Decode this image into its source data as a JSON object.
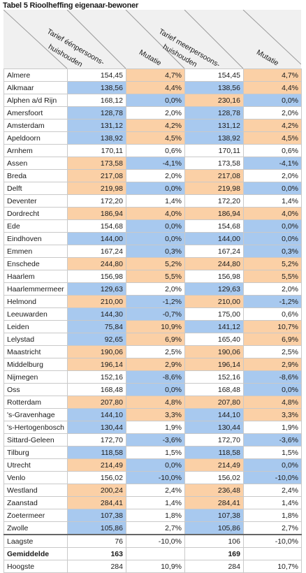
{
  "title": "Tabel 5  Rioolheffing eigenaar-bewoner",
  "headers": [
    {
      "l1": "Tarief éénpersoons-",
      "l2": "huishouden"
    },
    {
      "l1": "Mutatie",
      "l2": ""
    },
    {
      "l1": "Tarief meerpersoons-",
      "l2": "huishouden"
    },
    {
      "l1": "Mutatie",
      "l2": ""
    }
  ],
  "colors": {
    "orange": "#fbd0a6",
    "blue": "#a8c9ef",
    "grey": "#f0f0f0"
  },
  "rows": [
    {
      "name": "Almere",
      "v1": "154,45",
      "m1": "4,7%",
      "v2": "154,45",
      "m2": "4,7%",
      "c": [
        "w",
        "o",
        "w",
        "o"
      ]
    },
    {
      "name": "Alkmaar",
      "v1": "138,56",
      "m1": "4,4%",
      "v2": "138,56",
      "m2": "4,4%",
      "c": [
        "b",
        "o",
        "b",
        "o"
      ]
    },
    {
      "name": "Alphen a/d Rijn",
      "v1": "168,12",
      "m1": "0,0%",
      "v2": "230,16",
      "m2": "0,0%",
      "c": [
        "w",
        "b",
        "o",
        "b"
      ]
    },
    {
      "name": "Amersfoort",
      "v1": "128,78",
      "m1": "2,0%",
      "v2": "128,78",
      "m2": "2,0%",
      "c": [
        "b",
        "w",
        "b",
        "w"
      ]
    },
    {
      "name": "Amsterdam",
      "v1": "131,12",
      "m1": "4,2%",
      "v2": "131,12",
      "m2": "4,2%",
      "c": [
        "b",
        "o",
        "b",
        "o"
      ]
    },
    {
      "name": "Apeldoorn",
      "v1": "138,92",
      "m1": "4,5%",
      "v2": "138,92",
      "m2": "4,5%",
      "c": [
        "b",
        "o",
        "b",
        "o"
      ]
    },
    {
      "name": "Arnhem",
      "v1": "170,11",
      "m1": "0,6%",
      "v2": "170,11",
      "m2": "0,6%",
      "c": [
        "w",
        "w",
        "w",
        "w"
      ]
    },
    {
      "name": "Assen",
      "v1": "173,58",
      "m1": "-4,1%",
      "v2": "173,58",
      "m2": "-4,1%",
      "c": [
        "o",
        "b",
        "w",
        "b"
      ]
    },
    {
      "name": "Breda",
      "v1": "217,08",
      "m1": "2,0%",
      "v2": "217,08",
      "m2": "2,0%",
      "c": [
        "o",
        "w",
        "o",
        "w"
      ]
    },
    {
      "name": "Delft",
      "v1": "219,98",
      "m1": "0,0%",
      "v2": "219,98",
      "m2": "0,0%",
      "c": [
        "o",
        "b",
        "o",
        "b"
      ]
    },
    {
      "name": "Deventer",
      "v1": "172,20",
      "m1": "1,4%",
      "v2": "172,20",
      "m2": "1,4%",
      "c": [
        "w",
        "w",
        "w",
        "w"
      ]
    },
    {
      "name": "Dordrecht",
      "v1": "186,94",
      "m1": "4,0%",
      "v2": "186,94",
      "m2": "4,0%",
      "c": [
        "o",
        "o",
        "o",
        "o"
      ]
    },
    {
      "name": "Ede",
      "v1": "154,68",
      "m1": "0,0%",
      "v2": "154,68",
      "m2": "0,0%",
      "c": [
        "w",
        "b",
        "w",
        "b"
      ]
    },
    {
      "name": "Eindhoven",
      "v1": "144,00",
      "m1": "0,0%",
      "v2": "144,00",
      "m2": "0,0%",
      "c": [
        "b",
        "b",
        "b",
        "b"
      ]
    },
    {
      "name": "Emmen",
      "v1": "167,24",
      "m1": "0,3%",
      "v2": "167,24",
      "m2": "0,3%",
      "c": [
        "w",
        "b",
        "w",
        "b"
      ]
    },
    {
      "name": "Enschede",
      "v1": "244,80",
      "m1": "5,2%",
      "v2": "244,80",
      "m2": "5,2%",
      "c": [
        "o",
        "o",
        "o",
        "o"
      ]
    },
    {
      "name": "Haarlem",
      "v1": "156,98",
      "m1": "5,5%",
      "v2": "156,98",
      "m2": "5,5%",
      "c": [
        "w",
        "o",
        "w",
        "o"
      ]
    },
    {
      "name": "Haarlemmermeer",
      "v1": "129,63",
      "m1": "2,0%",
      "v2": "129,63",
      "m2": "2,0%",
      "c": [
        "b",
        "w",
        "b",
        "w"
      ]
    },
    {
      "name": "Helmond",
      "v1": "210,00",
      "m1": "-1,2%",
      "v2": "210,00",
      "m2": "-1,2%",
      "c": [
        "o",
        "b",
        "o",
        "b"
      ]
    },
    {
      "name": "Leeuwarden",
      "v1": "144,30",
      "m1": "-0,7%",
      "v2": "175,00",
      "m2": "0,6%",
      "c": [
        "b",
        "b",
        "w",
        "w"
      ]
    },
    {
      "name": "Leiden",
      "v1": "75,84",
      "m1": "10,9%",
      "v2": "141,12",
      "m2": "10,7%",
      "c": [
        "b",
        "o",
        "b",
        "o"
      ]
    },
    {
      "name": "Lelystad",
      "v1": "92,65",
      "m1": "6,9%",
      "v2": "165,40",
      "m2": "6,9%",
      "c": [
        "b",
        "o",
        "w",
        "o"
      ]
    },
    {
      "name": "Maastricht",
      "v1": "190,06",
      "m1": "2,5%",
      "v2": "190,06",
      "m2": "2,5%",
      "c": [
        "o",
        "w",
        "o",
        "w"
      ]
    },
    {
      "name": "Middelburg",
      "v1": "196,14",
      "m1": "2,9%",
      "v2": "196,14",
      "m2": "2,9%",
      "c": [
        "o",
        "o",
        "o",
        "o"
      ]
    },
    {
      "name": "Nijmegen",
      "v1": "152,16",
      "m1": "-8,6%",
      "v2": "152,16",
      "m2": "-8,6%",
      "c": [
        "w",
        "b",
        "w",
        "b"
      ]
    },
    {
      "name": "Oss",
      "v1": "168,48",
      "m1": "0,0%",
      "v2": "168,48",
      "m2": "0,0%",
      "c": [
        "w",
        "b",
        "w",
        "b"
      ]
    },
    {
      "name": "Rotterdam",
      "v1": "207,80",
      "m1": "4,8%",
      "v2": "207,80",
      "m2": "4,8%",
      "c": [
        "o",
        "o",
        "o",
        "o"
      ]
    },
    {
      "name": "'s-Gravenhage",
      "v1": "144,10",
      "m1": "3,3%",
      "v2": "144,10",
      "m2": "3,3%",
      "c": [
        "b",
        "o",
        "b",
        "o"
      ]
    },
    {
      "name": "'s-Hertogenbosch",
      "v1": "130,44",
      "m1": "1,9%",
      "v2": "130,44",
      "m2": "1,9%",
      "c": [
        "b",
        "w",
        "b",
        "w"
      ]
    },
    {
      "name": "Sittard-Geleen",
      "v1": "172,70",
      "m1": "-3,6%",
      "v2": "172,70",
      "m2": "-3,6%",
      "c": [
        "w",
        "b",
        "w",
        "b"
      ]
    },
    {
      "name": "Tilburg",
      "v1": "118,58",
      "m1": "1,5%",
      "v2": "118,58",
      "m2": "1,5%",
      "c": [
        "b",
        "w",
        "b",
        "w"
      ]
    },
    {
      "name": "Utrecht",
      "v1": "214,49",
      "m1": "0,0%",
      "v2": "214,49",
      "m2": "0,0%",
      "c": [
        "o",
        "b",
        "o",
        "b"
      ]
    },
    {
      "name": "Venlo",
      "v1": "156,02",
      "m1": "-10,0%",
      "v2": "156,02",
      "m2": "-10,0%",
      "c": [
        "w",
        "b",
        "w",
        "b"
      ]
    },
    {
      "name": "Westland",
      "v1": "200,24",
      "m1": "2,4%",
      "v2": "236,48",
      "m2": "2,4%",
      "c": [
        "o",
        "w",
        "o",
        "w"
      ]
    },
    {
      "name": "Zaanstad",
      "v1": "284,41",
      "m1": "1,4%",
      "v2": "284,41",
      "m2": "1,4%",
      "c": [
        "o",
        "w",
        "o",
        "w"
      ]
    },
    {
      "name": "Zoetermeer",
      "v1": "107,38",
      "m1": "1,8%",
      "v2": "107,38",
      "m2": "1,8%",
      "c": [
        "b",
        "w",
        "b",
        "w"
      ]
    },
    {
      "name": "Zwolle",
      "v1": "105,86",
      "m1": "2,7%",
      "v2": "105,86",
      "m2": "2,7%",
      "c": [
        "b",
        "w",
        "b",
        "w"
      ]
    }
  ],
  "summary": [
    {
      "name": "Laagste",
      "v1": "76",
      "m1": "-10,0%",
      "v2": "106",
      "m2": "-10,0%",
      "bold": false
    },
    {
      "name": "Gemiddelde",
      "v1": "163",
      "m1": "",
      "v2": "169",
      "m2": "",
      "bold": true
    },
    {
      "name": "Hoogste",
      "v1": "284",
      "m1": "10,9%",
      "v2": "284",
      "m2": "10,7%",
      "bold": false
    }
  ]
}
